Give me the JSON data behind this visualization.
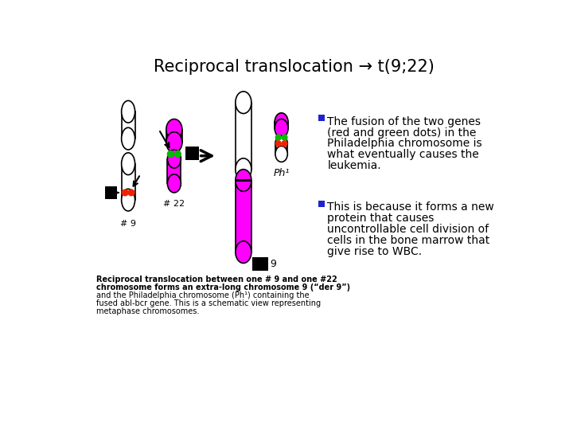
{
  "title": "Reciprocal translocation → t(9;22)",
  "title_fontsize": 15,
  "background_color": "#ffffff",
  "bullet1_line1": "The fusion of the two genes",
  "bullet1_line2": "(red and green dots) in the",
  "bullet1_line3": "Philadelphia chromosome is",
  "bullet1_line4": "what eventually causes the",
  "bullet1_line5": "leukemia.",
  "bullet2_line1": "This is because it forms a new",
  "bullet2_line2": "protein that causes",
  "bullet2_line3": "uncontrollable cell division of",
  "bullet2_line4": "cells in the bone marrow that",
  "bullet2_line5": "give rise to WBC.",
  "caption_line1": "Reciprocal translocation between one # 9 and one #22",
  "caption_line2": "chromosome forms an extra-long chromosome 9 (“der 9”)",
  "caption_line3": "and the Philadelphia chromosome (Ph¹) containing the",
  "caption_line4": "fused abl-bcr gene. This is a schematic view representing",
  "caption_line5": "metaphase chromosomes.",
  "label_22": "# 22",
  "label_9": "# 9",
  "label_ph1": "Ph¹",
  "label_9_after": "9",
  "magenta": "#FF00FF",
  "green": "#00BB00",
  "red": "#EE2200",
  "black": "#000000",
  "blue_bullet": "#2222CC",
  "white": "#ffffff",
  "gray": "#cccccc"
}
